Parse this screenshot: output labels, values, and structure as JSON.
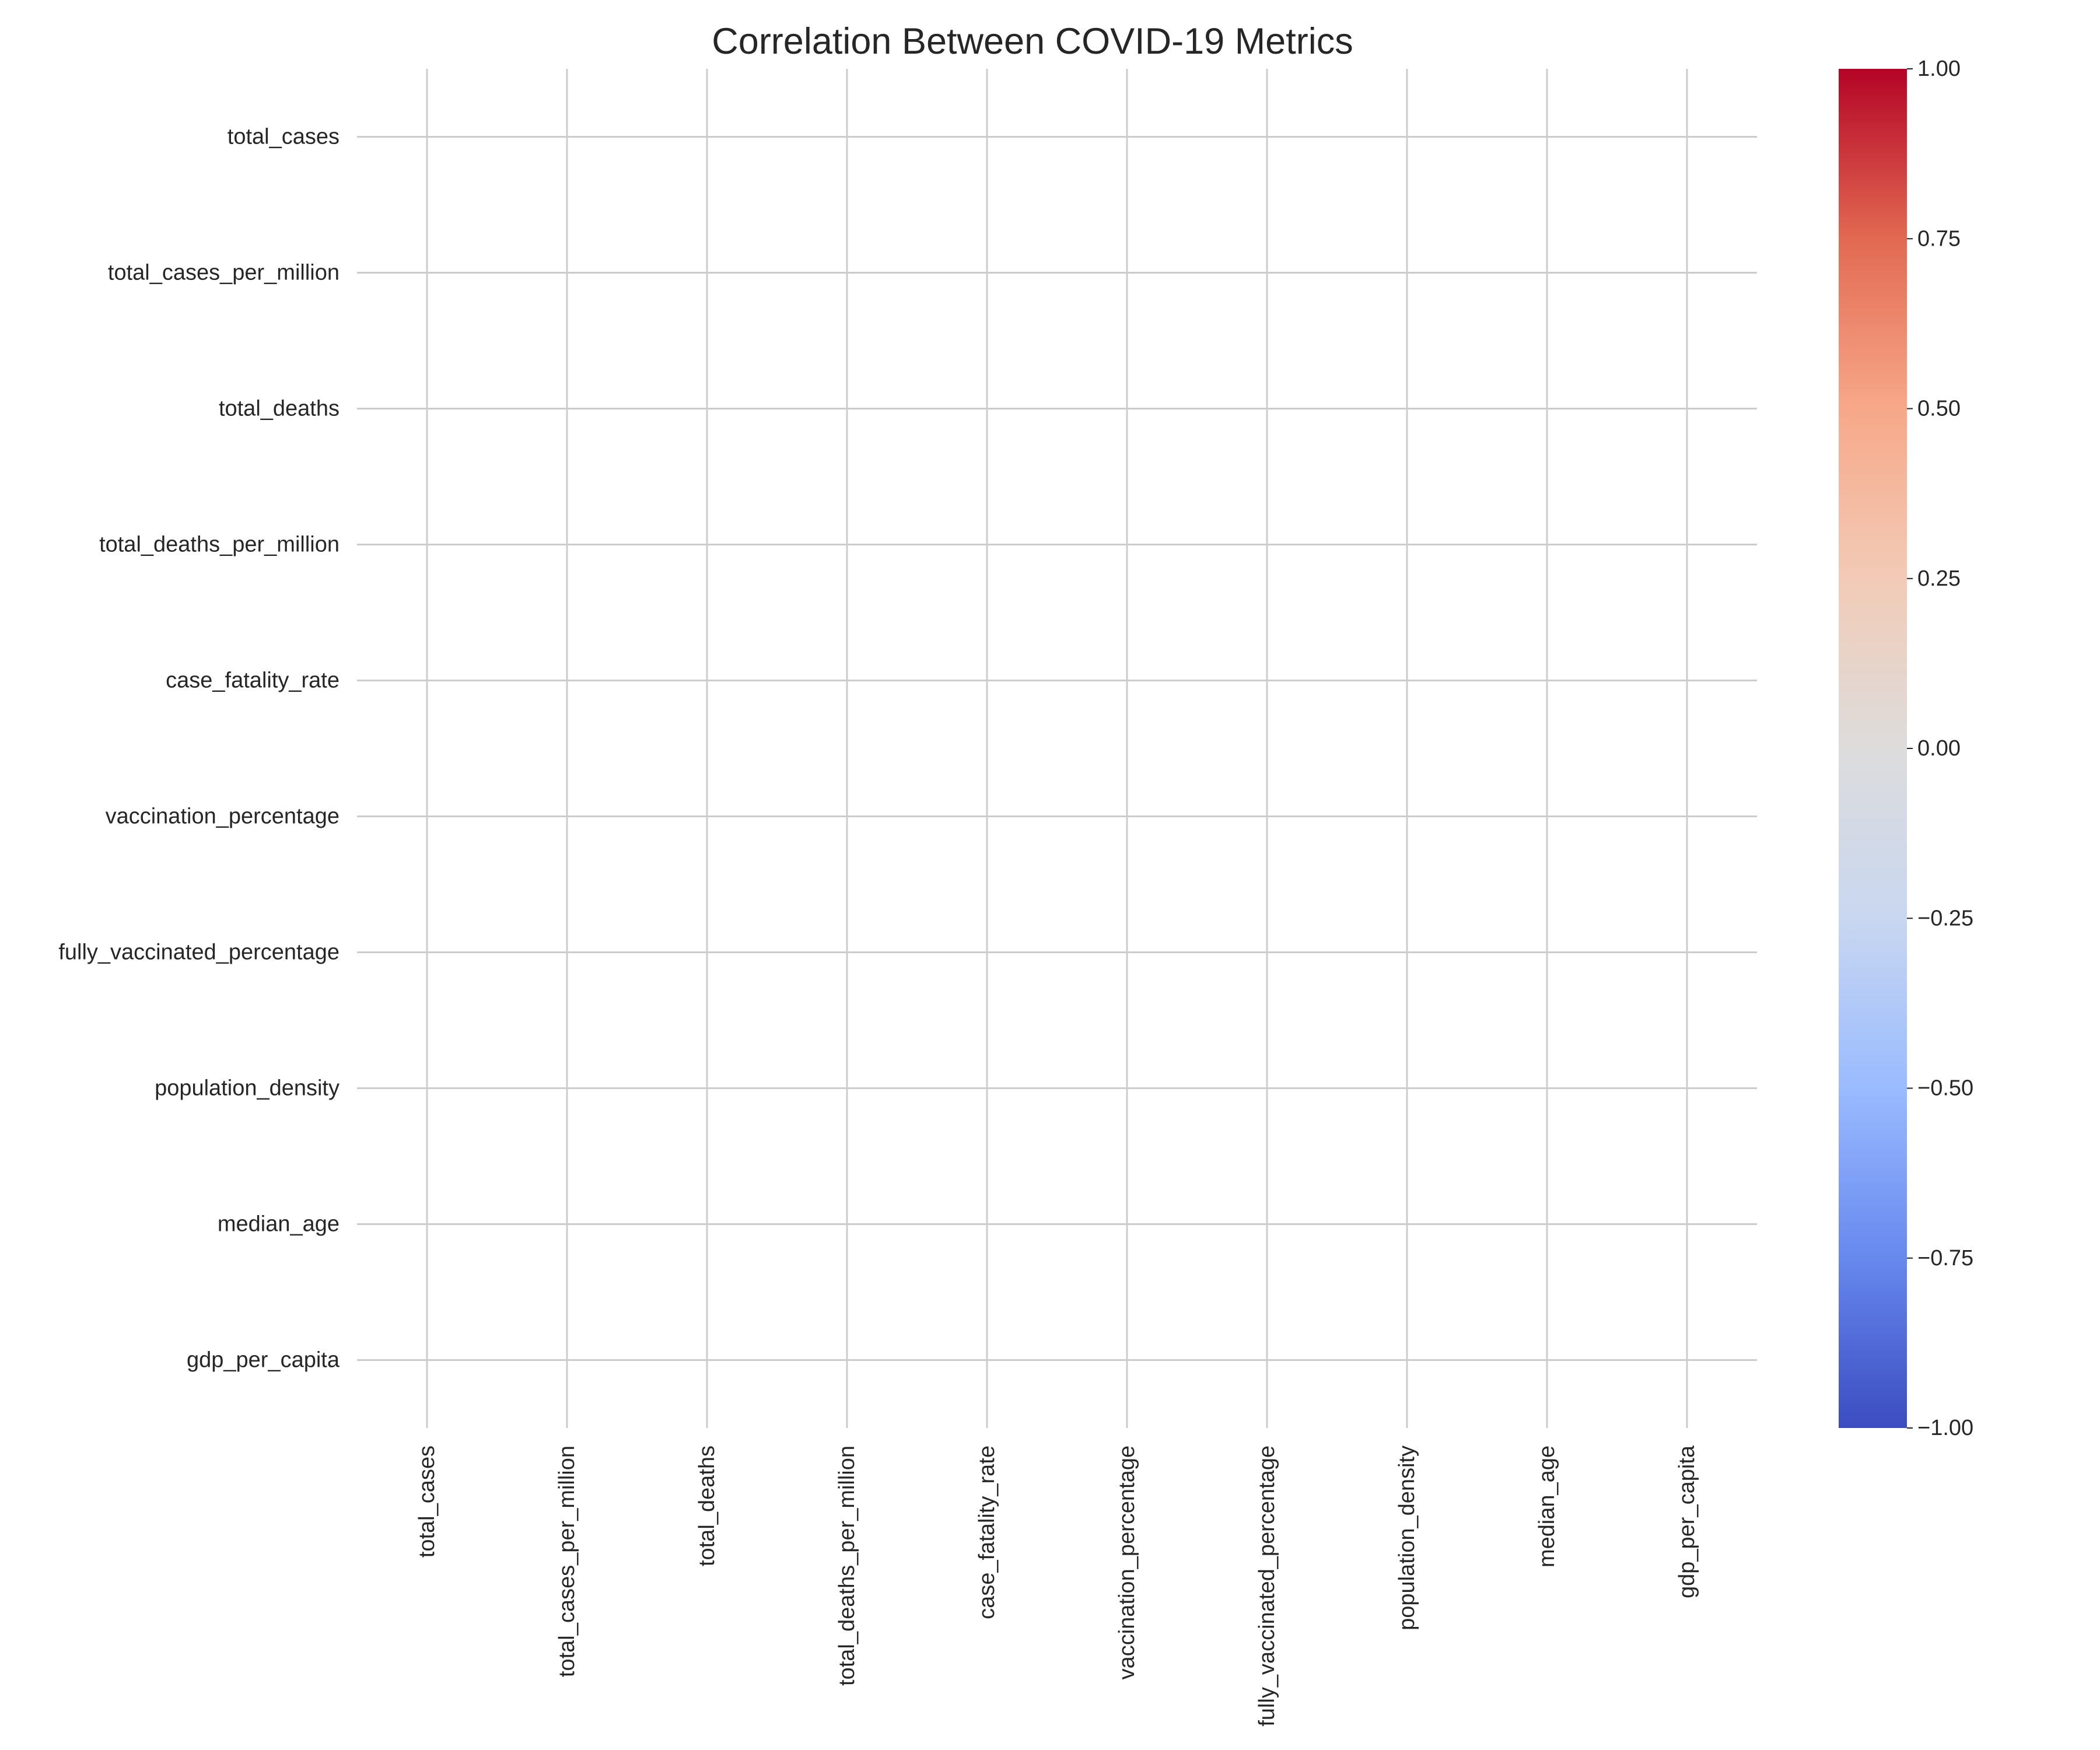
{
  "chart_data": {
    "type": "heatmap",
    "title": "Correlation Between COVID-19 Metrics",
    "xlabel": "",
    "ylabel": "",
    "row_labels": [
      "total_cases",
      "total_cases_per_million",
      "total_deaths",
      "total_deaths_per_million",
      "case_fatality_rate",
      "vaccination_percentage",
      "fully_vaccinated_percentage",
      "population_density",
      "median_age",
      "gdp_per_capita"
    ],
    "col_labels": [
      "total_cases",
      "total_cases_per_million",
      "total_deaths",
      "total_deaths_per_million",
      "case_fatality_rate",
      "vaccination_percentage",
      "fully_vaccinated_percentage",
      "population_density",
      "median_age",
      "gdp_per_capita"
    ],
    "values": [
      [
        null,
        null,
        null,
        null,
        null,
        null,
        null,
        null,
        null,
        null
      ],
      [
        null,
        null,
        null,
        null,
        null,
        null,
        null,
        null,
        null,
        null
      ],
      [
        null,
        null,
        null,
        null,
        null,
        null,
        null,
        null,
        null,
        null
      ],
      [
        null,
        null,
        null,
        null,
        null,
        null,
        null,
        null,
        null,
        null
      ],
      [
        null,
        null,
        null,
        null,
        null,
        null,
        null,
        null,
        null,
        null
      ],
      [
        null,
        null,
        null,
        null,
        null,
        null,
        null,
        null,
        null,
        null
      ],
      [
        null,
        null,
        null,
        null,
        null,
        null,
        null,
        null,
        null,
        null
      ],
      [
        null,
        null,
        null,
        null,
        null,
        null,
        null,
        null,
        null,
        null
      ],
      [
        null,
        null,
        null,
        null,
        null,
        null,
        null,
        null,
        null,
        null
      ],
      [
        null,
        null,
        null,
        null,
        null,
        null,
        null,
        null,
        null,
        null
      ]
    ],
    "grid": true,
    "colorbar": {
      "colormap": "coolwarm",
      "vmin": -1,
      "vmax": 1,
      "ticks": [
        1.0,
        0.75,
        0.5,
        0.25,
        0.0,
        -0.25,
        -0.5,
        -0.75,
        -1.0
      ],
      "tick_labels": [
        "1.00",
        "0.75",
        "0.50",
        "0.25",
        "0.00",
        "−0.25",
        "−0.50",
        "−0.75",
        "−1.00"
      ],
      "colors": [
        "#3b4cc0",
        "#6788ee",
        "#9abbff",
        "#c9d7f0",
        "#dddcdc",
        "#f2cbb7",
        "#f7a889",
        "#e26952",
        "#b40426"
      ],
      "placement": "right"
    },
    "gridline_color": "#cccccc"
  }
}
